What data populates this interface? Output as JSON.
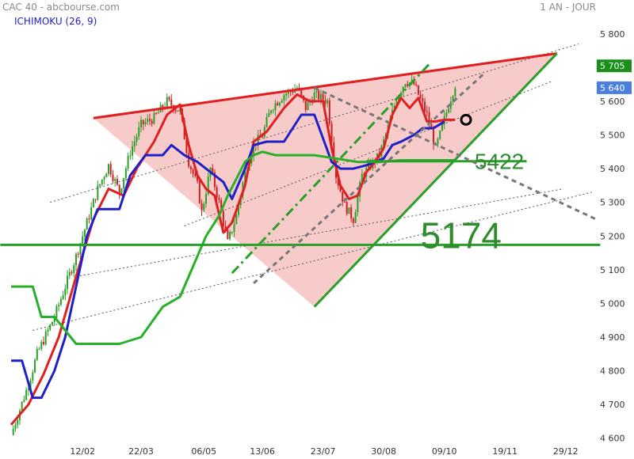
{
  "header": {
    "left": "CAC 40 - abcbourse.com",
    "right": "1 AN - JOUR",
    "indicator": "ICHIMOKU (26, 9)"
  },
  "chart_data": {
    "type": "line",
    "title": "CAC 40 - abcbourse.com",
    "period": "1 AN - JOUR",
    "indicator": "ICHIMOKU (26, 9)",
    "x_tick_labels": [
      "12/02",
      "22/03",
      "06/05",
      "13/06",
      "23/07",
      "30/08",
      "09/10",
      "19/11",
      "29/12"
    ],
    "y_tick_labels": [
      "5 800",
      "5 700",
      "5 600",
      "5 500",
      "5 400",
      "5 300",
      "5 200",
      "5 100",
      "5 000",
      "4 900",
      "4 800",
      "4 700",
      "4 600"
    ],
    "y_ticks": [
      5800,
      5700,
      5600,
      5500,
      5400,
      5300,
      5200,
      5100,
      5000,
      4900,
      4800,
      4700,
      4600
    ],
    "ylim": [
      4590,
      5830
    ],
    "x_index_range": [
      0,
      270
    ],
    "x_tick_positions": [
      33,
      60,
      89,
      116,
      144,
      172,
      200,
      228,
      256
    ],
    "grid": false,
    "price_tags": [
      {
        "label": "5 705",
        "value": 5705,
        "color": "#1a8f1a"
      },
      {
        "label": "5 640",
        "value": 5640,
        "color": "#4a7fe0"
      }
    ],
    "annotations": [
      {
        "label": "5422",
        "value": 5422,
        "color": "#2e8b2e"
      },
      {
        "label": "5174",
        "value": 5174,
        "color": "#2e8b2e"
      }
    ],
    "series": [
      {
        "kind": "close",
        "color": "#2aa02a",
        "x": [
          0,
          8,
          12,
          20,
          30,
          40,
          45,
          50,
          55,
          60,
          66,
          72,
          78,
          82,
          86,
          88,
          92,
          96,
          100,
          104,
          108,
          112,
          116,
          120,
          126,
          132,
          136,
          140,
          146,
          150,
          154,
          158,
          162,
          166,
          170,
          174,
          178,
          182,
          186,
          192,
          196,
          198,
          202,
          205
        ],
        "values": [
          4610,
          4760,
          4850,
          4960,
          5140,
          5340,
          5410,
          5330,
          5450,
          5530,
          5550,
          5600,
          5570,
          5420,
          5350,
          5270,
          5400,
          5300,
          5180,
          5260,
          5390,
          5470,
          5500,
          5580,
          5620,
          5640,
          5580,
          5620,
          5600,
          5380,
          5290,
          5250,
          5380,
          5410,
          5440,
          5520,
          5610,
          5660,
          5650,
          5560,
          5460,
          5500,
          5590,
          5650
        ]
      },
      {
        "kind": "tenkan",
        "color": "#e02020",
        "x": [
          0,
          8,
          15,
          22,
          30,
          38,
          45,
          52,
          58,
          66,
          72,
          78,
          82,
          86,
          90,
          94,
          98,
          102,
          108,
          112,
          118,
          126,
          132,
          138,
          144,
          148,
          152,
          156,
          160,
          164,
          168,
          172,
          176,
          180,
          184,
          188,
          192,
          196,
          200,
          205
        ],
        "values": [
          4640,
          4700,
          4790,
          4900,
          5080,
          5250,
          5340,
          5320,
          5400,
          5480,
          5560,
          5590,
          5470,
          5380,
          5340,
          5320,
          5210,
          5240,
          5350,
          5480,
          5510,
          5580,
          5620,
          5600,
          5600,
          5460,
          5350,
          5310,
          5320,
          5390,
          5420,
          5460,
          5560,
          5610,
          5580,
          5610,
          5540,
          5540,
          5545,
          5545
        ]
      },
      {
        "kind": "kijun",
        "color": "#2020c8",
        "x": [
          0,
          5,
          10,
          14,
          20,
          25,
          30,
          35,
          40,
          50,
          55,
          62,
          70,
          74,
          80,
          86,
          92,
          98,
          102,
          108,
          112,
          118,
          126,
          134,
          140,
          148,
          152,
          158,
          164,
          168,
          172,
          176,
          180,
          186,
          190,
          195,
          200
        ],
        "values": [
          4830,
          4830,
          4720,
          4720,
          4800,
          4900,
          5050,
          5200,
          5280,
          5280,
          5380,
          5440,
          5440,
          5470,
          5440,
          5420,
          5390,
          5360,
          5310,
          5400,
          5470,
          5480,
          5480,
          5560,
          5560,
          5420,
          5400,
          5400,
          5410,
          5420,
          5430,
          5470,
          5480,
          5500,
          5520,
          5520,
          5540
        ]
      },
      {
        "kind": "chikou",
        "color": "#28b028",
        "x": [
          0,
          10,
          14,
          20,
          30,
          40,
          50,
          60,
          70,
          78,
          84,
          90,
          96,
          100,
          104,
          108,
          112,
          116,
          122,
          128,
          134,
          140,
          150,
          160,
          170,
          180,
          190,
          200,
          205
        ],
        "values": [
          5050,
          5050,
          4960,
          4960,
          4880,
          4880,
          4880,
          4900,
          4990,
          5020,
          5110,
          5200,
          5260,
          5320,
          5370,
          5420,
          5440,
          5450,
          5440,
          5440,
          5440,
          5440,
          5430,
          5420,
          5420,
          5425,
          5425,
          5425,
          5425
        ]
      }
    ],
    "lines": [
      {
        "name": "",
        "style": "solid",
        "color": "#e02020",
        "width": 3,
        "points": [
          [
            38,
            5550
          ],
          [
            252,
            5742
          ]
        ]
      },
      {
        "name": "",
        "style": "solid",
        "color": "#2aa02a",
        "width": 3,
        "points": [
          [
            140,
            4990
          ],
          [
            252,
            5742
          ]
        ]
      },
      {
        "name": "",
        "style": "solid",
        "color": "#2aa02a",
        "width": 3,
        "points": [
          [
            -5,
            5174
          ],
          [
            272,
            5174
          ]
        ]
      },
      {
        "name": "",
        "style": "solid",
        "color": "#2aa02a",
        "width": 3,
        "points": [
          [
            164,
            5422
          ],
          [
            238,
            5422
          ]
        ]
      },
      {
        "name": "",
        "style": "dashdot",
        "color": "#2aa02a",
        "width": 3,
        "points": [
          [
            102,
            5090
          ],
          [
            193,
            5710
          ]
        ]
      },
      {
        "name": "",
        "style": "dashed",
        "color": "#777777",
        "width": 3,
        "points": [
          [
            140,
            5640
          ],
          [
            270,
            5250
          ]
        ]
      },
      {
        "name": "",
        "style": "dashed",
        "color": "#777777",
        "width": 3,
        "points": [
          [
            112,
            5060
          ],
          [
            218,
            5680
          ]
        ]
      },
      {
        "name": "",
        "style": "dotted",
        "color": "#555555",
        "width": 1,
        "points": [
          [
            18,
            5300
          ],
          [
            262,
            5770
          ]
        ]
      },
      {
        "name": "",
        "style": "dotted",
        "color": "#555555",
        "width": 1,
        "points": [
          [
            10,
            4920
          ],
          [
            268,
            5330
          ]
        ]
      },
      {
        "name": "",
        "style": "dotted",
        "color": "#555555",
        "width": 1,
        "points": [
          [
            30,
            5080
          ],
          [
            255,
            5340
          ]
        ]
      },
      {
        "name": "",
        "style": "dotted",
        "color": "#555555",
        "width": 1,
        "points": [
          [
            80,
            5230
          ],
          [
            250,
            5660
          ]
        ]
      }
    ],
    "triangle": {
      "color": "#f4a8a8",
      "points": [
        [
          38,
          5550
        ],
        [
          252,
          5742
        ],
        [
          140,
          4990
        ]
      ]
    },
    "marker": {
      "x": 210,
      "value": 5545,
      "color": "#000000"
    }
  }
}
